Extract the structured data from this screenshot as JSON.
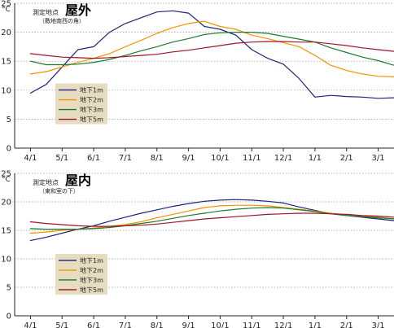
{
  "chart_data": [
    {
      "type": "line",
      "title": "屋外",
      "location_label": "測定地点",
      "location_note": "（敷地南西の角）",
      "unit": "°C",
      "ylim": [
        0,
        25
      ],
      "yticks": [
        0,
        5,
        10,
        15,
        20,
        25
      ],
      "grid": true,
      "legend_position": "left",
      "x_categories": [
        "4/1",
        "5/1",
        "6/1",
        "7/1",
        "8/1",
        "9/1",
        "10/1",
        "11/1",
        "12/1",
        "1/1",
        "2/1",
        "3/1"
      ],
      "series": [
        {
          "name": "地下1m",
          "color": "#1a237e",
          "x": [
            0,
            0.5,
            1,
            1.5,
            2,
            2.5,
            3,
            3.5,
            4,
            4.5,
            5,
            5.5,
            6,
            6.5,
            7,
            7.5,
            8,
            8.5,
            9,
            9.5,
            10,
            10.5,
            11,
            11.5
          ],
          "y": [
            9.5,
            11,
            14,
            17,
            17.5,
            20,
            21.5,
            22.5,
            23.5,
            23.7,
            23.3,
            21,
            20.5,
            19.5,
            17,
            15.5,
            14.5,
            12,
            8.8,
            9.1,
            8.9,
            8.8,
            8.6,
            8.7
          ]
        },
        {
          "name": "地下2m",
          "color": "#f39200",
          "x": [
            0,
            0.5,
            1,
            1.5,
            2,
            2.5,
            3,
            3.5,
            4,
            4.5,
            5,
            5.5,
            6,
            6.5,
            7,
            7.5,
            8,
            8.5,
            9,
            9.5,
            10,
            10.5,
            11,
            11.5
          ],
          "y": [
            12.8,
            13.2,
            14,
            14.8,
            15.5,
            16.3,
            17.5,
            18.6,
            19.8,
            20.8,
            21.5,
            21.9,
            21,
            20.5,
            19.5,
            18.9,
            18.2,
            17.5,
            16,
            14.3,
            13.4,
            12.8,
            12.4,
            12.3
          ]
        },
        {
          "name": "地下3m",
          "color": "#1b7a2e",
          "x": [
            0,
            0.5,
            1,
            1.5,
            2,
            2.5,
            3,
            3.5,
            4,
            4.5,
            5,
            5.5,
            6,
            6.5,
            7,
            7.5,
            8,
            8.5,
            9,
            9.5,
            10,
            10.5,
            11,
            11.5
          ],
          "y": [
            15,
            14.4,
            14.4,
            14.5,
            14.8,
            15.3,
            16,
            16.8,
            17.5,
            18.3,
            18.9,
            19.6,
            19.9,
            20,
            20,
            19.8,
            19.3,
            18.8,
            18.3,
            17.3,
            16.5,
            15.7,
            15.1,
            14.3
          ]
        },
        {
          "name": "地下5m",
          "color": "#a0142a",
          "x": [
            0,
            0.5,
            1,
            1.5,
            2,
            2.5,
            3,
            3.5,
            4,
            4.5,
            5,
            5.5,
            6,
            6.5,
            7,
            7.5,
            8,
            8.5,
            9,
            9.5,
            10,
            10.5,
            11,
            11.5
          ],
          "y": [
            16.3,
            16,
            15.7,
            15.6,
            15.5,
            15.6,
            15.8,
            16,
            16.2,
            16.6,
            16.9,
            17.3,
            17.7,
            18.1,
            18.3,
            18.4,
            18.4,
            18.3,
            18.3,
            18,
            17.7,
            17.3,
            17,
            16.7
          ]
        }
      ]
    },
    {
      "type": "line",
      "title": "屋内",
      "location_label": "測定地点",
      "location_note": "（東和室の下）",
      "unit": "°C",
      "ylim": [
        0,
        25
      ],
      "yticks": [
        0,
        5,
        10,
        15,
        20,
        25
      ],
      "grid": true,
      "legend_position": "left",
      "x_categories": [
        "4/1",
        "5/1",
        "6/1",
        "7/1",
        "8/1",
        "9/1",
        "10/1",
        "11/1",
        "12/1",
        "1/1",
        "2/1",
        "3/1"
      ],
      "series": [
        {
          "name": "地下1m",
          "color": "#1a237e",
          "x": [
            0,
            0.5,
            1,
            1.5,
            2,
            2.5,
            3,
            3.5,
            4,
            4.5,
            5,
            5.5,
            6,
            6.5,
            7,
            7.5,
            8,
            8.5,
            9,
            9.5,
            10,
            10.5,
            11,
            11.5
          ],
          "y": [
            13.2,
            13.8,
            14.5,
            15.2,
            15.8,
            16.6,
            17.3,
            18,
            18.6,
            19.2,
            19.7,
            20.1,
            20.3,
            20.4,
            20.3,
            20.1,
            19.8,
            19.1,
            18.5,
            17.9,
            17.6,
            17.3,
            17,
            16.7
          ]
        },
        {
          "name": "地下2m",
          "color": "#f39200",
          "x": [
            0,
            0.5,
            1,
            1.5,
            2,
            2.5,
            3,
            3.5,
            4,
            4.5,
            5,
            5.5,
            6,
            6.5,
            7,
            7.5,
            8,
            8.5,
            9,
            9.5,
            10,
            10.5,
            11,
            11.5
          ],
          "y": [
            14.5,
            14.7,
            15,
            15.2,
            15.4,
            15.7,
            16,
            16.5,
            17.2,
            17.8,
            18.4,
            19,
            19.3,
            19.4,
            19.4,
            19.3,
            19,
            18.7,
            18.4,
            18,
            17.7,
            17.5,
            17.3,
            17
          ]
        },
        {
          "name": "地下3m",
          "color": "#1b7a2e",
          "x": [
            0,
            0.5,
            1,
            1.5,
            2,
            2.5,
            3,
            3.5,
            4,
            4.5,
            5,
            5.5,
            6,
            6.5,
            7,
            7.5,
            8,
            8.5,
            9,
            9.5,
            10,
            10.5,
            11,
            11.5
          ],
          "y": [
            15.3,
            15.2,
            15.2,
            15.2,
            15.3,
            15.5,
            15.8,
            16.2,
            16.6,
            17.1,
            17.6,
            18,
            18.4,
            18.7,
            18.9,
            19,
            18.9,
            18.6,
            18.3,
            17.9,
            17.6,
            17.4,
            17.2,
            17
          ]
        },
        {
          "name": "地下5m",
          "color": "#a0142a",
          "x": [
            0,
            0.5,
            1,
            1.5,
            2,
            2.5,
            3,
            3.5,
            4,
            4.5,
            5,
            5.5,
            6,
            6.5,
            7,
            7.5,
            8,
            8.5,
            9,
            9.5,
            10,
            10.5,
            11,
            11.5
          ],
          "y": [
            16.5,
            16.2,
            16,
            15.8,
            15.7,
            15.7,
            15.8,
            15.9,
            16.1,
            16.4,
            16.7,
            17,
            17.2,
            17.4,
            17.6,
            17.8,
            17.9,
            18,
            18,
            17.9,
            17.8,
            17.6,
            17.5,
            17.3
          ]
        }
      ]
    }
  ]
}
